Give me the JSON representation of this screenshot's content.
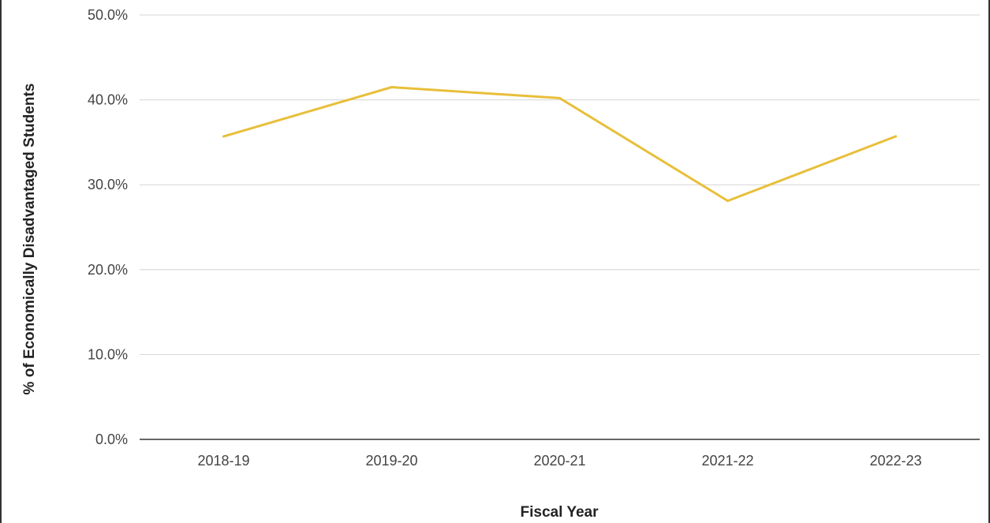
{
  "chart_data": {
    "type": "line",
    "title": "",
    "xlabel": "Fiscal Year",
    "ylabel": "% of Economically Disadvantaged Students",
    "categories": [
      "2018-19",
      "2019-20",
      "2020-21",
      "2021-22",
      "2022-23"
    ],
    "series": [
      {
        "values": [
          35.7,
          41.5,
          40.2,
          28.1,
          35.7
        ],
        "color": "#e8bf3a"
      }
    ],
    "ylim": [
      0,
      50
    ],
    "yticks": [
      0,
      10,
      20,
      30,
      40,
      50
    ],
    "ytick_labels": [
      "0.0%",
      "10.0%",
      "20.0%",
      "30.0%",
      "40.0%",
      "50.0%"
    ],
    "grid": true,
    "legend": "none"
  }
}
